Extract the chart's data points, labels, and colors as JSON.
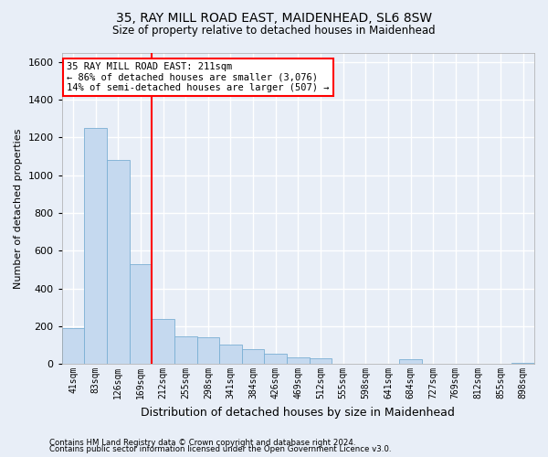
{
  "title": "35, RAY MILL ROAD EAST, MAIDENHEAD, SL6 8SW",
  "subtitle": "Size of property relative to detached houses in Maidenhead",
  "xlabel": "Distribution of detached houses by size in Maidenhead",
  "ylabel": "Number of detached properties",
  "categories": [
    "41sqm",
    "83sqm",
    "126sqm",
    "169sqm",
    "212sqm",
    "255sqm",
    "298sqm",
    "341sqm",
    "384sqm",
    "426sqm",
    "469sqm",
    "512sqm",
    "555sqm",
    "598sqm",
    "641sqm",
    "684sqm",
    "727sqm",
    "769sqm",
    "812sqm",
    "855sqm",
    "898sqm"
  ],
  "values": [
    190,
    1250,
    1080,
    530,
    240,
    148,
    143,
    100,
    80,
    55,
    35,
    30,
    2,
    0,
    0,
    25,
    0,
    0,
    0,
    0,
    5
  ],
  "bar_color": "#c5d9ef",
  "bar_edge_color": "#7aafd4",
  "annotation_label": "35 RAY MILL ROAD EAST: 211sqm",
  "annotation_line1": "← 86% of detached houses are smaller (3,076)",
  "annotation_line2": "14% of semi-detached houses are larger (507) →",
  "annotation_box_color": "white",
  "annotation_border_color": "red",
  "vline_color": "red",
  "vline_index": 4,
  "ylim": [
    0,
    1650
  ],
  "yticks": [
    0,
    200,
    400,
    600,
    800,
    1000,
    1200,
    1400,
    1600
  ],
  "background_color": "#e8eef7",
  "grid_color": "white",
  "footer_line1": "Contains HM Land Registry data © Crown copyright and database right 2024.",
  "footer_line2": "Contains public sector information licensed under the Open Government Licence v3.0."
}
